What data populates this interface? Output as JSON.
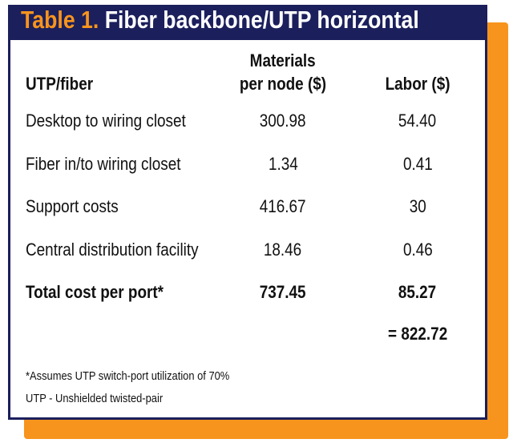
{
  "header": {
    "label": "Table 1.",
    "title": "Fiber backbone/UTP horizontal"
  },
  "table": {
    "columns": [
      "UTP/fiber",
      [
        "Materials",
        "per node ($)"
      ],
      "Labor ($)"
    ],
    "rows": [
      [
        "Desktop to wiring closet",
        "300.98",
        "54.40"
      ],
      [
        "Fiber in/to wiring closet",
        "1.34",
        "0.41"
      ],
      [
        "Support costs",
        "416.67",
        "30"
      ],
      [
        "Central distribution facility",
        "18.46",
        "0.46"
      ]
    ],
    "total": [
      "Total cost per port*",
      "737.45",
      "85.27"
    ],
    "grand_total": "= 822.72"
  },
  "footnotes": [
    "*Assumes UTP switch-port utilization of 70%",
    "UTP - Unshielded twisted-pair"
  ]
}
